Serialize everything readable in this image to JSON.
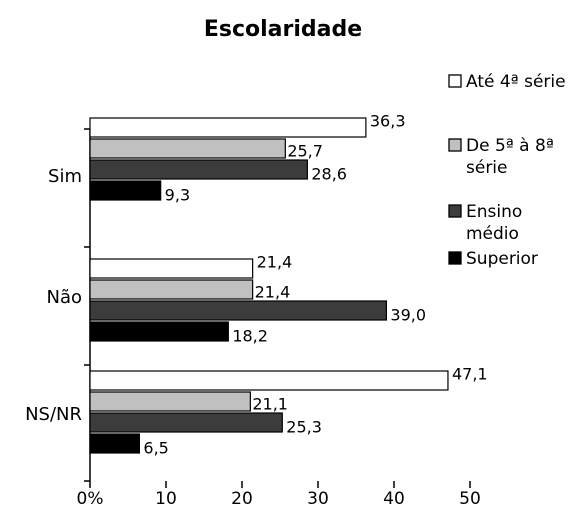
{
  "chart_data": {
    "type": "bar",
    "orientation": "horizontal",
    "title": "Escolaridade",
    "categories": [
      "Sim",
      "Não",
      "NS/NR"
    ],
    "series": [
      {
        "name": "Até 4ª série",
        "color": "#ffffff",
        "values": [
          36.3,
          21.4,
          47.1
        ],
        "labels": [
          "36,3",
          "21,4",
          "47,1"
        ]
      },
      {
        "name": "De 5ª à 8ª série",
        "name_lines": [
          "De 5ª à 8ª",
          "série"
        ],
        "color": "#c0c0c0",
        "values": [
          25.7,
          21.4,
          21.1
        ],
        "labels": [
          "25,7",
          "21,4",
          "21,1"
        ]
      },
      {
        "name": "Ensino médio",
        "name_lines": [
          "Ensino",
          "médio"
        ],
        "color": "#3c3c3c",
        "values": [
          28.6,
          39.0,
          25.3
        ],
        "labels": [
          "28,6",
          "39,0",
          "25,3"
        ]
      },
      {
        "name": "Superior",
        "color": "#000000",
        "values": [
          9.3,
          18.2,
          6.5
        ],
        "labels": [
          "9,3",
          "18,2",
          "6,5"
        ]
      }
    ],
    "xlim": [
      0,
      50
    ],
    "xticks": [
      "0%",
      "10",
      "20",
      "30",
      "40",
      "50"
    ],
    "legend_position": "right",
    "grid": false
  }
}
